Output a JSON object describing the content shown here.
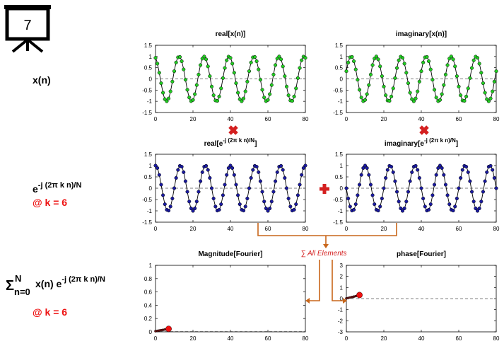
{
  "slide_number": "7",
  "left_labels": {
    "xn": "x(n)",
    "kernel_base": "e",
    "kernel_exp": "-j (2π k n)/N",
    "k1": "@ k = 6",
    "sum_sigma": "Σ",
    "sum_upper": "N",
    "sum_lower": "n=0",
    "sum_term": "x(n) e",
    "sum_exp": "-j (2π k n)/N",
    "k2": "@ k = 6"
  },
  "sum_label": "∑ All Elements",
  "colors": {
    "signal_fill": "#22cc22",
    "kernel_fill": "#1a1aa0",
    "result_fill": "#ee1111",
    "result_trail": "#661111",
    "arrow": "#c8661a",
    "operator": "#d42020",
    "k_label": "#ee1111"
  },
  "chart_data": [
    {
      "id": "real-x",
      "type": "line",
      "title": "real[x(n)]",
      "signal": "cos(2*pi*6*n/80 + 0.35)",
      "n_range": [
        0,
        80
      ],
      "xlim": [
        0,
        80
      ],
      "ylim": [
        -1.5,
        1.5
      ],
      "xticks": [
        "0",
        "20",
        "40",
        "60",
        "80"
      ],
      "yticks": [
        "1.5",
        "1",
        "0.5",
        "0",
        "-0.5",
        "-1",
        "-1.5"
      ],
      "marker_color": "#22cc22"
    },
    {
      "id": "imag-x",
      "type": "line",
      "title": "imaginary[x(n)]",
      "signal": "sin(2*pi*6*n/80 + 0.35)",
      "n_range": [
        0,
        80
      ],
      "xlim": [
        0,
        80
      ],
      "ylim": [
        -1.5,
        1.5
      ],
      "xticks": [
        "0",
        "20",
        "40",
        "60",
        "80"
      ],
      "yticks": [
        "1.5",
        "1",
        "0.5",
        "0",
        "-0.5",
        "-1",
        "-1.5"
      ],
      "marker_color": "#22cc22"
    },
    {
      "id": "real-e",
      "type": "line",
      "title_base": "real[e",
      "title_exp": "-j (2π k n)/N",
      "title_end": "]",
      "signal": "cos(2*pi*6*n/80)",
      "n_range": [
        0,
        80
      ],
      "xlim": [
        0,
        80
      ],
      "ylim": [
        -1.5,
        1.5
      ],
      "xticks": [
        "0",
        "20",
        "40",
        "60",
        "80"
      ],
      "yticks": [
        "1.5",
        "1",
        "0.5",
        "0",
        "-0.5",
        "-1",
        "-1.5"
      ],
      "marker_color": "#1a1aa0"
    },
    {
      "id": "imag-e",
      "type": "line",
      "title_base": "imaginary[e",
      "title_exp": "-j (2π k n)/N",
      "title_end": "]",
      "signal": "-sin(2*pi*6*n/80)",
      "n_range": [
        0,
        80
      ],
      "xlim": [
        0,
        80
      ],
      "ylim": [
        -1.5,
        1.5
      ],
      "xticks": [
        "0",
        "20",
        "40",
        "60",
        "80"
      ],
      "yticks": [
        "1.5",
        "1",
        "0.5",
        "0",
        "-0.5",
        "-1",
        "-1.5"
      ],
      "marker_color": "#1a1aa0"
    },
    {
      "id": "magnitude",
      "type": "line",
      "title": "Magnitude[Fourier]",
      "x": [
        0,
        1,
        2,
        3,
        4,
        5,
        6,
        7
      ],
      "y": [
        0.01,
        0.015,
        0.02,
        0.025,
        0.03,
        0.035,
        0.04,
        0.045
      ],
      "xlim": [
        0,
        80
      ],
      "ylim": [
        0,
        1
      ],
      "xticks": [
        "0",
        "20",
        "40",
        "60",
        "80"
      ],
      "yticks": [
        "1",
        "0.8",
        "0.6",
        "0.4",
        "0.2",
        "0"
      ],
      "marker_color": "#ee1111"
    },
    {
      "id": "phase",
      "type": "line",
      "title": "phase[Fourier]",
      "x": [
        0,
        1,
        2,
        3,
        4,
        5,
        6,
        7
      ],
      "y": [
        0.02,
        0.06,
        0.1,
        0.14,
        0.18,
        0.22,
        0.27,
        0.32
      ],
      "xlim": [
        0,
        80
      ],
      "ylim": [
        -3,
        3
      ],
      "xticks": [
        "0",
        "20",
        "40",
        "60",
        "80"
      ],
      "yticks": [
        "3",
        "2",
        "1",
        "0",
        "-1",
        "-2",
        "-3"
      ],
      "marker_color": "#ee1111"
    }
  ]
}
